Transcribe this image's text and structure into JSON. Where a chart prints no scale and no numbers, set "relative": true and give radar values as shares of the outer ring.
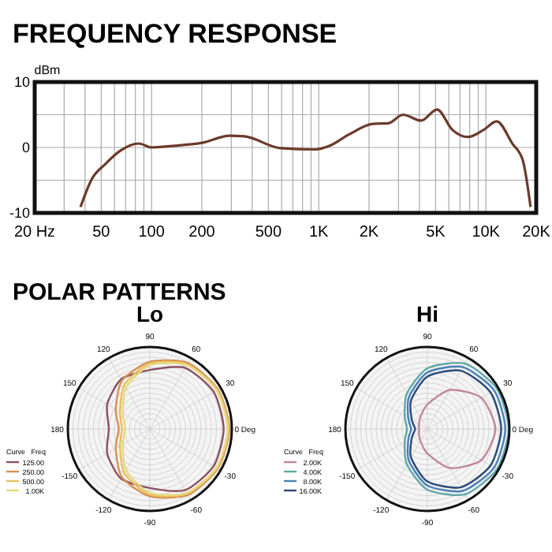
{
  "chart_data": [
    {
      "type": "line",
      "title": "FREQUENCY RESPONSE",
      "ylabel": "dBm",
      "log": "x",
      "grid": true,
      "xlim": [
        20,
        20000
      ],
      "ylim": [
        -10,
        10
      ],
      "xticks": [
        {
          "value": 20,
          "label": "20 Hz"
        },
        {
          "value": 30,
          "label": null
        },
        {
          "value": 40,
          "label": null
        },
        50,
        {
          "value": 60,
          "label": null
        },
        {
          "value": 70,
          "label": null
        },
        {
          "value": 80,
          "label": null
        },
        {
          "value": 90,
          "label": null
        },
        100,
        200,
        {
          "value": 300,
          "label": null
        },
        {
          "value": 400,
          "label": null
        },
        500,
        {
          "value": 600,
          "label": null
        },
        {
          "value": 700,
          "label": null
        },
        {
          "value": 800,
          "label": null
        },
        {
          "value": 900,
          "label": null
        },
        {
          "value": 1000,
          "label": "1K"
        },
        {
          "value": 2000,
          "label": "2K"
        },
        {
          "value": 3000,
          "label": null
        },
        {
          "value": 4000,
          "label": null
        },
        {
          "value": 5000,
          "label": "5K"
        },
        {
          "value": 6000,
          "label": null
        },
        {
          "value": 7000,
          "label": null
        },
        {
          "value": 8000,
          "label": null
        },
        {
          "value": 9000,
          "label": null
        },
        {
          "value": 10000,
          "label": "10K"
        },
        {
          "value": 20000,
          "label": "20K"
        }
      ],
      "yticks": [
        -10,
        {
          "value": -5,
          "label": null
        },
        0,
        {
          "value": 5,
          "label": null
        },
        10
      ],
      "x": [
        37.6,
        44,
        52.6,
        65,
        84,
        100,
        128,
        200,
        293,
        360,
        590,
        960,
        1150,
        1520,
        2100,
        2600,
        3200,
        4100,
        5100,
        6300,
        7800,
        9700,
        11600,
        14400,
        16600,
        18500
      ],
      "series": [
        {
          "color": "#6b3a2a",
          "values": [
            -9.1,
            -4.8,
            -2.6,
            -0.5,
            0.6,
            0,
            0.2,
            0.7,
            1.8,
            1.7,
            -0.1,
            -0.3,
            0.2,
            2.0,
            3.6,
            3.7,
            5.0,
            4.1,
            5.8,
            2.7,
            1.6,
            2.7,
            4.0,
            0.6,
            -1.9,
            -9.1
          ]
        }
      ]
    },
    {
      "type": "radar",
      "title": "Lo",
      "relative": true,
      "grid": true,
      "legend": "left",
      "legend_title": "Curve   Freq",
      "annotations": [
        "POLAR PATTERNS"
      ],
      "categories": [
        "90",
        "60",
        "30",
        "0 Deg",
        "-30",
        "-60",
        "-90",
        "-120",
        "-150",
        "180",
        "150",
        "120"
      ],
      "series": [
        {
          "name": "125.00",
          "color": "#8a5060",
          "values": [
            0.72,
            0.86,
            0.9,
            0.9,
            0.9,
            0.86,
            0.72,
            0.7,
            0.6,
            0.5,
            0.6,
            0.7
          ]
        },
        {
          "name": "250.00",
          "color": "#d89050",
          "values": [
            0.82,
            0.93,
            0.96,
            0.97,
            0.96,
            0.93,
            0.82,
            0.68,
            0.48,
            0.38,
            0.48,
            0.68
          ]
        },
        {
          "name": "500.00",
          "color": "#e8c060",
          "values": [
            0.8,
            0.91,
            0.95,
            0.96,
            0.95,
            0.91,
            0.8,
            0.62,
            0.42,
            0.34,
            0.42,
            0.62
          ]
        },
        {
          "name": "1.00K",
          "color": "#e8d880",
          "values": [
            0.78,
            0.9,
            0.94,
            0.95,
            0.94,
            0.9,
            0.78,
            0.58,
            0.38,
            0.3,
            0.38,
            0.58
          ]
        }
      ]
    },
    {
      "type": "radar",
      "title": "Hi",
      "relative": true,
      "grid": true,
      "legend": "left",
      "legend_title": "Curve   Freq",
      "categories": [
        "90",
        "60",
        "30",
        "0 Deg",
        "-30",
        "-60",
        "-90",
        "-120",
        "-150",
        "180",
        "150",
        "120"
      ],
      "series": [
        {
          "name": "2.00K",
          "color": "#c08898",
          "values": [
            0.3,
            0.55,
            0.76,
            0.83,
            0.76,
            0.55,
            0.3,
            0.17,
            0.12,
            0.1,
            0.12,
            0.17
          ]
        },
        {
          "name": "4.00K",
          "color": "#60a8a8",
          "values": [
            0.74,
            0.92,
            0.98,
            0.99,
            0.98,
            0.92,
            0.74,
            0.5,
            0.32,
            0.25,
            0.32,
            0.5
          ]
        },
        {
          "name": "8.00K",
          "color": "#4a80b8",
          "values": [
            0.69,
            0.87,
            0.94,
            0.95,
            0.94,
            0.87,
            0.69,
            0.45,
            0.27,
            0.2,
            0.27,
            0.45
          ]
        },
        {
          "name": "16.00K",
          "color": "#2a4a7a",
          "values": [
            0.64,
            0.82,
            0.89,
            0.9,
            0.89,
            0.82,
            0.64,
            0.4,
            0.22,
            0.15,
            0.22,
            0.4
          ]
        }
      ]
    }
  ]
}
